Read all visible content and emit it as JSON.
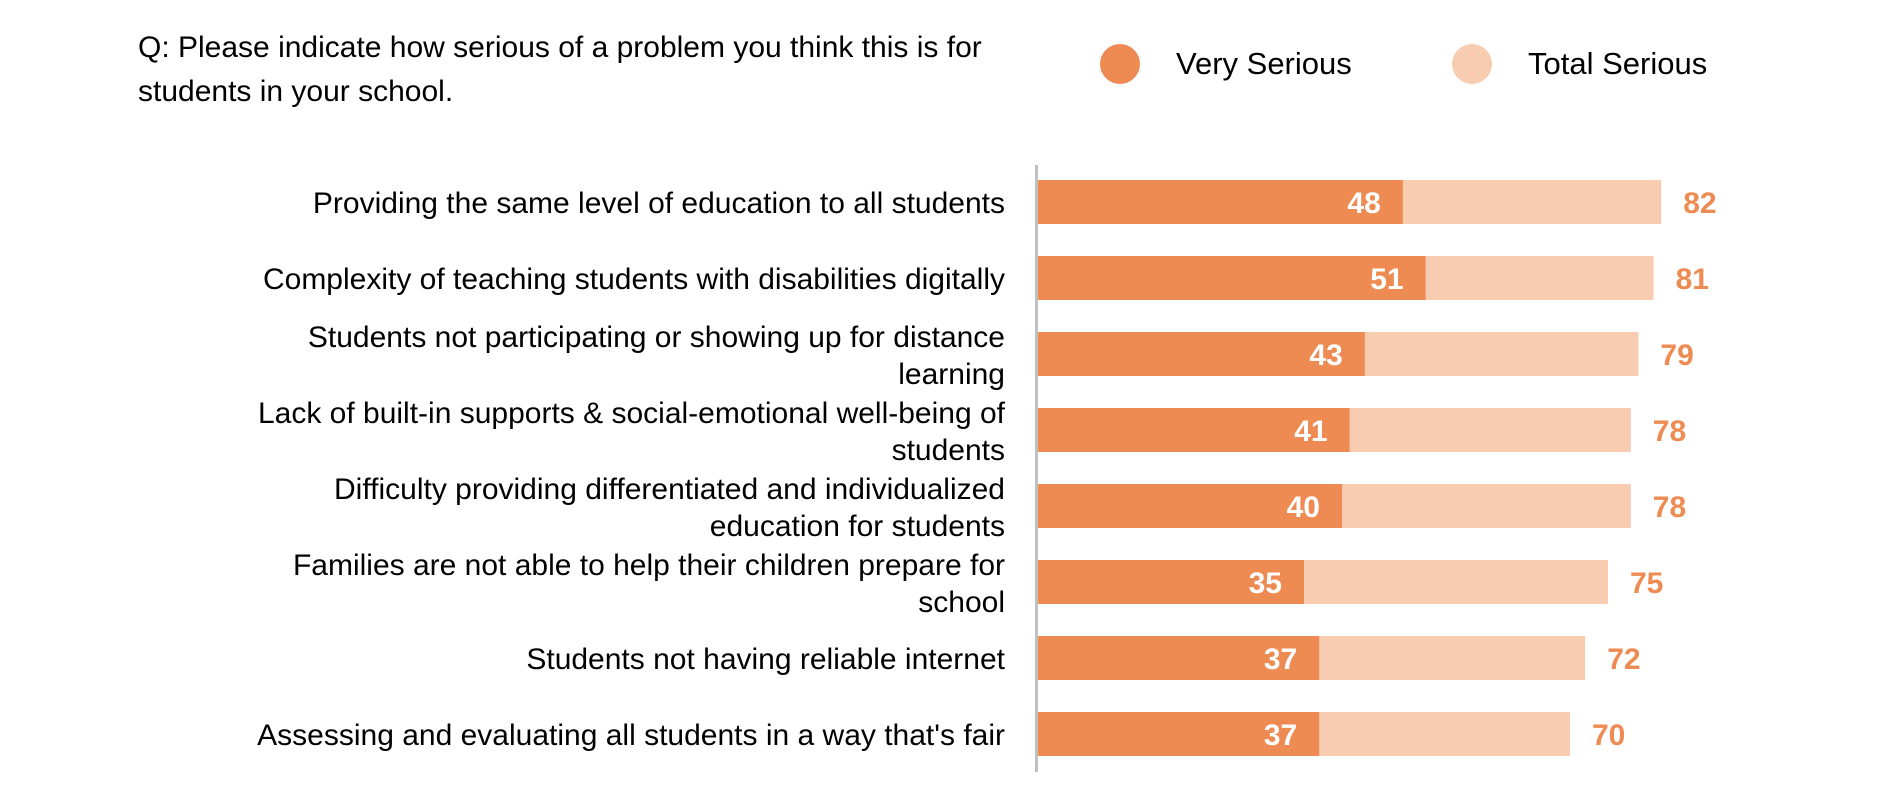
{
  "question": "Q: Please indicate how serious of a problem you think this is for students in your school.",
  "colors": {
    "very": "#ed8b52",
    "total": "#f8ccb1",
    "axis": "#bfbfbf",
    "outer_label": "#ed8b52"
  },
  "legend": [
    {
      "label": "Very Serious",
      "color": "#ed8b52"
    },
    {
      "label": "Total Serious",
      "color": "#f8ccb1"
    }
  ],
  "chart_data": {
    "type": "bar",
    "orientation": "horizontal",
    "layout": "overlapping",
    "categories": [
      "Providing the same level of education to all students",
      "Complexity of teaching students with disabilities digitally",
      "Students not participating or showing up for distance learning",
      "Lack of built-in supports & social-emotional well-being of students",
      "Difficulty providing differentiated and individualized education for students",
      "Families are not able to help their children prepare for school",
      "Students not having reliable internet",
      "Assessing and evaluating all students in a way that's fair"
    ],
    "category_lines": [
      [
        "Providing the same level of education to all students"
      ],
      [
        "Complexity of teaching students with disabilities digitally"
      ],
      [
        "Students not participating or showing up for distance",
        "learning"
      ],
      [
        "Lack of built-in supports & social-emotional well-being of",
        "students"
      ],
      [
        "Difficulty providing differentiated and individualized",
        "education for students"
      ],
      [
        "Families are not able to help their children prepare for",
        "school"
      ],
      [
        "Students not having reliable internet"
      ],
      [
        "Assessing and evaluating all students in a way that's fair"
      ]
    ],
    "series": [
      {
        "name": "Very Serious",
        "values": [
          48,
          51,
          43,
          41,
          40,
          35,
          37,
          37
        ]
      },
      {
        "name": "Total Serious",
        "values": [
          82,
          81,
          79,
          78,
          78,
          75,
          72,
          70
        ]
      }
    ],
    "xlim": [
      0,
      100
    ],
    "grid": false,
    "legend_position": "top-right"
  }
}
